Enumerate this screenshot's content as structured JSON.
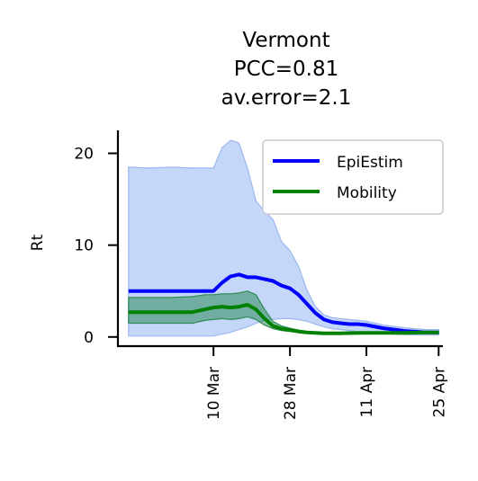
{
  "chart_data": {
    "type": "line",
    "title": [
      "Vermont",
      "PCC=0.81",
      "av.error=2.1"
    ],
    "xlabel": "",
    "ylabel": "Rt",
    "x_ticks": [
      "10 Mar",
      "28 Mar",
      "11 Apr",
      "25 Apr"
    ],
    "x_tick_days": [
      20,
      38,
      56,
      73
    ],
    "xlim": [
      -2.5,
      74
    ],
    "ylim": [
      -1,
      22.5
    ],
    "y_ticks": [
      0,
      10,
      20
    ],
    "y_tick_labels": [
      "0",
      "10",
      "20"
    ],
    "grid": false,
    "legend_position": "top-right",
    "colors": {
      "epiestim": "#0000ff",
      "epiestim_band": "#6495ed",
      "epiestim_band_edge": "#9db8f0",
      "mobility": "#008000",
      "mobility_band": "#2e8b57"
    },
    "series": [
      {
        "name": "EpiEstim",
        "x": [
          0,
          5,
          10,
          15,
          20,
          22,
          24,
          25,
          26,
          28,
          30,
          32,
          34,
          36,
          38,
          40,
          42,
          44,
          46,
          48,
          50,
          52,
          54,
          56,
          60,
          65,
          70,
          73
        ],
        "y": [
          5.0,
          5.0,
          5.0,
          5.0,
          5.0,
          5.9,
          6.6,
          6.7,
          6.8,
          6.5,
          6.5,
          6.3,
          6.1,
          5.6,
          5.3,
          4.6,
          3.6,
          2.6,
          1.9,
          1.6,
          1.5,
          1.4,
          1.4,
          1.3,
          0.95,
          0.65,
          0.5,
          0.5
        ],
        "lower": [
          0.1,
          0.1,
          0.1,
          0.1,
          0.1,
          0.3,
          0.5,
          0.65,
          0.8,
          1.1,
          1.5,
          1.8,
          1.9,
          2.0,
          2.0,
          1.9,
          1.7,
          1.4,
          1.1,
          0.9,
          0.8,
          0.7,
          0.6,
          0.5,
          0.35,
          0.25,
          0.2,
          0.2
        ],
        "upper": [
          18.5,
          18.4,
          18.5,
          18.4,
          18.4,
          20.6,
          21.4,
          21.3,
          21.1,
          18.4,
          14.8,
          13.7,
          12.8,
          10.4,
          9.4,
          7.7,
          5.1,
          3.3,
          2.4,
          2.1,
          2.0,
          1.9,
          1.8,
          1.7,
          1.3,
          1.0,
          0.8,
          0.8
        ]
      },
      {
        "name": "Mobility",
        "x": [
          0,
          5,
          10,
          15,
          18,
          20,
          22,
          24,
          26,
          28,
          30,
          32,
          34,
          36,
          38,
          40,
          42,
          44,
          46,
          48,
          50,
          55,
          60,
          65,
          70,
          73
        ],
        "y": [
          2.7,
          2.7,
          2.7,
          2.7,
          3.0,
          3.2,
          3.3,
          3.2,
          3.3,
          3.5,
          3.0,
          2.0,
          1.2,
          0.9,
          0.75,
          0.6,
          0.5,
          0.45,
          0.4,
          0.4,
          0.4,
          0.45,
          0.45,
          0.45,
          0.5,
          0.5
        ],
        "lower": [
          1.5,
          1.5,
          1.5,
          1.5,
          1.8,
          1.9,
          2.0,
          1.9,
          2.0,
          2.2,
          1.9,
          1.3,
          0.9,
          0.7,
          0.6,
          0.5,
          0.4,
          0.35,
          0.3,
          0.3,
          0.3,
          0.35,
          0.35,
          0.35,
          0.4,
          0.4
        ],
        "upper": [
          4.3,
          4.3,
          4.3,
          4.4,
          4.6,
          4.6,
          4.7,
          4.7,
          4.8,
          5.0,
          4.6,
          3.0,
          1.7,
          1.2,
          0.95,
          0.75,
          0.6,
          0.55,
          0.5,
          0.5,
          0.5,
          0.55,
          0.55,
          0.55,
          0.6,
          0.6
        ]
      }
    ]
  }
}
